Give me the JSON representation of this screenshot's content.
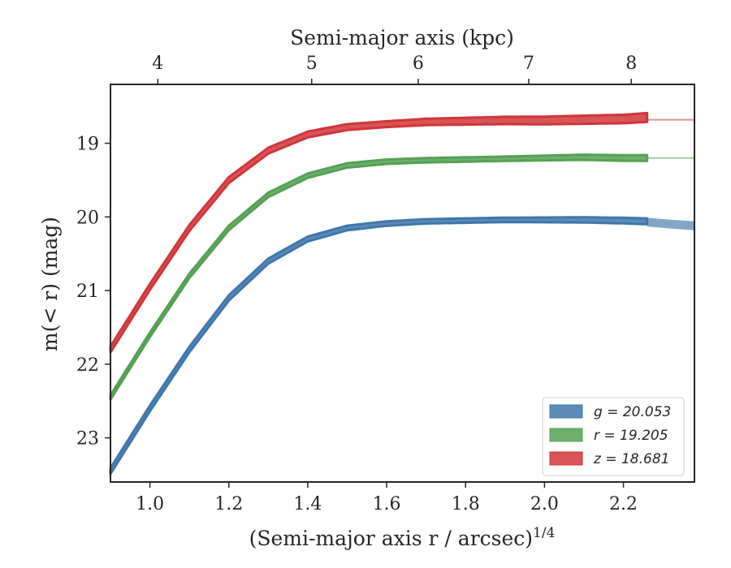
{
  "chart_data": {
    "type": "area",
    "xlabel": "(Semi-major axis r / arcsec)",
    "xlabel_exp": "1/4",
    "ylabel": "m(< r) (mag)",
    "top_xlabel": "Semi-major axis (kpc)",
    "xlim": [
      0.9,
      2.38
    ],
    "ylim": [
      23.6,
      18.2
    ],
    "y_inverted": true,
    "x_ticks": [
      1.0,
      1.2,
      1.4,
      1.6,
      1.8,
      2.0,
      2.2
    ],
    "x_tick_labels": [
      "1.0",
      "1.2",
      "1.4",
      "1.6",
      "1.8",
      "2.0",
      "2.2"
    ],
    "y_ticks": [
      19,
      20,
      21,
      22,
      23
    ],
    "y_tick_labels": [
      "19",
      "20",
      "21",
      "22",
      "23"
    ],
    "top_ticks_kpc": [
      4,
      5,
      6,
      7,
      8
    ],
    "top_tick_labels": [
      "4",
      "5",
      "6",
      "7",
      "8"
    ],
    "top_tick_x_positions": [
      1.02,
      1.41,
      1.68,
      1.96,
      2.22
    ],
    "grid": false,
    "legend_position": "lower-right",
    "series": [
      {
        "name": "g = 20.053",
        "color": "#3f77ab",
        "points": [
          [
            0.9,
            23.45
          ],
          [
            1.0,
            22.6
          ],
          [
            1.1,
            21.8
          ],
          [
            1.2,
            21.1
          ],
          [
            1.3,
            20.6
          ],
          [
            1.4,
            20.3
          ],
          [
            1.5,
            20.15
          ],
          [
            1.6,
            20.09
          ],
          [
            1.7,
            20.06
          ],
          [
            1.8,
            20.05
          ],
          [
            1.9,
            20.04
          ],
          [
            2.0,
            20.04
          ],
          [
            2.1,
            20.04
          ],
          [
            2.2,
            20.05
          ],
          [
            2.26,
            20.06
          ]
        ],
        "halfwidth": [
          [
            0.9,
            0.04
          ],
          [
            1.6,
            0.03
          ],
          [
            1.9,
            0.03
          ],
          [
            2.26,
            0.04
          ]
        ],
        "extension": [
          [
            2.26,
            20.07
          ],
          [
            2.3,
            20.09
          ],
          [
            2.38,
            20.12
          ]
        ],
        "extension_halfwidth": 0.06
      },
      {
        "name": "r = 19.205",
        "color": "#55a155",
        "points": [
          [
            0.9,
            22.45
          ],
          [
            1.0,
            21.6
          ],
          [
            1.1,
            20.8
          ],
          [
            1.2,
            20.15
          ],
          [
            1.3,
            19.7
          ],
          [
            1.4,
            19.44
          ],
          [
            1.5,
            19.3
          ],
          [
            1.6,
            19.25
          ],
          [
            1.7,
            19.23
          ],
          [
            1.8,
            19.22
          ],
          [
            1.9,
            19.21
          ],
          [
            2.0,
            19.2
          ],
          [
            2.1,
            19.19
          ],
          [
            2.2,
            19.2
          ],
          [
            2.26,
            19.2
          ]
        ],
        "halfwidth": [
          [
            0.9,
            0.03
          ],
          [
            1.6,
            0.03
          ],
          [
            1.9,
            0.03
          ],
          [
            2.26,
            0.04
          ]
        ],
        "extension": [
          [
            2.26,
            19.2
          ],
          [
            2.38,
            19.2
          ]
        ],
        "extension_halfwidth": 0
      },
      {
        "name": "z = 18.681",
        "color": "#d0363a",
        "points": [
          [
            0.9,
            21.8
          ],
          [
            1.0,
            20.95
          ],
          [
            1.1,
            20.15
          ],
          [
            1.2,
            19.5
          ],
          [
            1.3,
            19.1
          ],
          [
            1.4,
            18.88
          ],
          [
            1.5,
            18.78
          ],
          [
            1.6,
            18.74
          ],
          [
            1.7,
            18.71
          ],
          [
            1.8,
            18.7
          ],
          [
            1.9,
            18.69
          ],
          [
            2.0,
            18.69
          ],
          [
            2.1,
            18.68
          ],
          [
            2.2,
            18.67
          ],
          [
            2.26,
            18.65
          ]
        ],
        "halfwidth": [
          [
            0.9,
            0.04
          ],
          [
            1.6,
            0.04
          ],
          [
            1.9,
            0.05
          ],
          [
            2.26,
            0.06
          ]
        ],
        "extension": [
          [
            2.26,
            18.68
          ],
          [
            2.38,
            18.68
          ]
        ],
        "extension_halfwidth": 0
      }
    ],
    "legend": [
      {
        "label": "g = 20.053",
        "color": "#3f77ab"
      },
      {
        "label": "r = 19.205",
        "color": "#55a155"
      },
      {
        "label": "z = 18.681",
        "color": "#d0363a"
      }
    ]
  }
}
